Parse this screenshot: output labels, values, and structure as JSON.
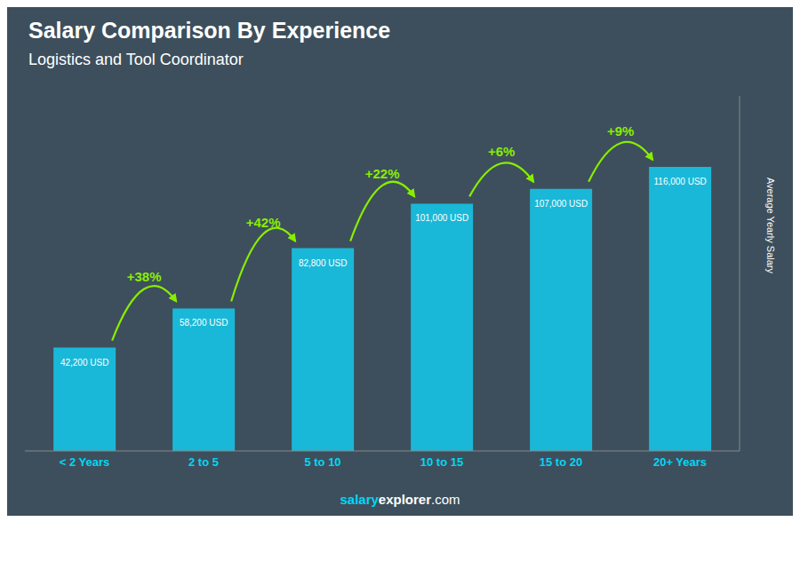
{
  "chart_data": {
    "type": "bar",
    "title": "Salary Comparison By Experience",
    "subtitle": "Logistics and Tool Coordinator",
    "categories": [
      "< 2 Years",
      "2 to 5",
      "5 to 10",
      "10 to 15",
      "15 to 20",
      "20+ Years"
    ],
    "values": [
      42200,
      58200,
      82800,
      101000,
      107000,
      116000
    ],
    "value_labels": [
      "42,200 USD",
      "58,200 USD",
      "82,800 USD",
      "101,000 USD",
      "107,000 USD",
      "116,000 USD"
    ],
    "data_labels": true,
    "annotations": [
      "+38%",
      "+42%",
      "+22%",
      "+6%",
      "+9%"
    ],
    "ylabel": "Average Yearly Salary",
    "ylim": [
      0,
      145000
    ],
    "tick_labels": "x",
    "grid": false,
    "color": "#1AB8D8",
    "footer": [
      "salary",
      "explorer",
      ".com"
    ]
  }
}
